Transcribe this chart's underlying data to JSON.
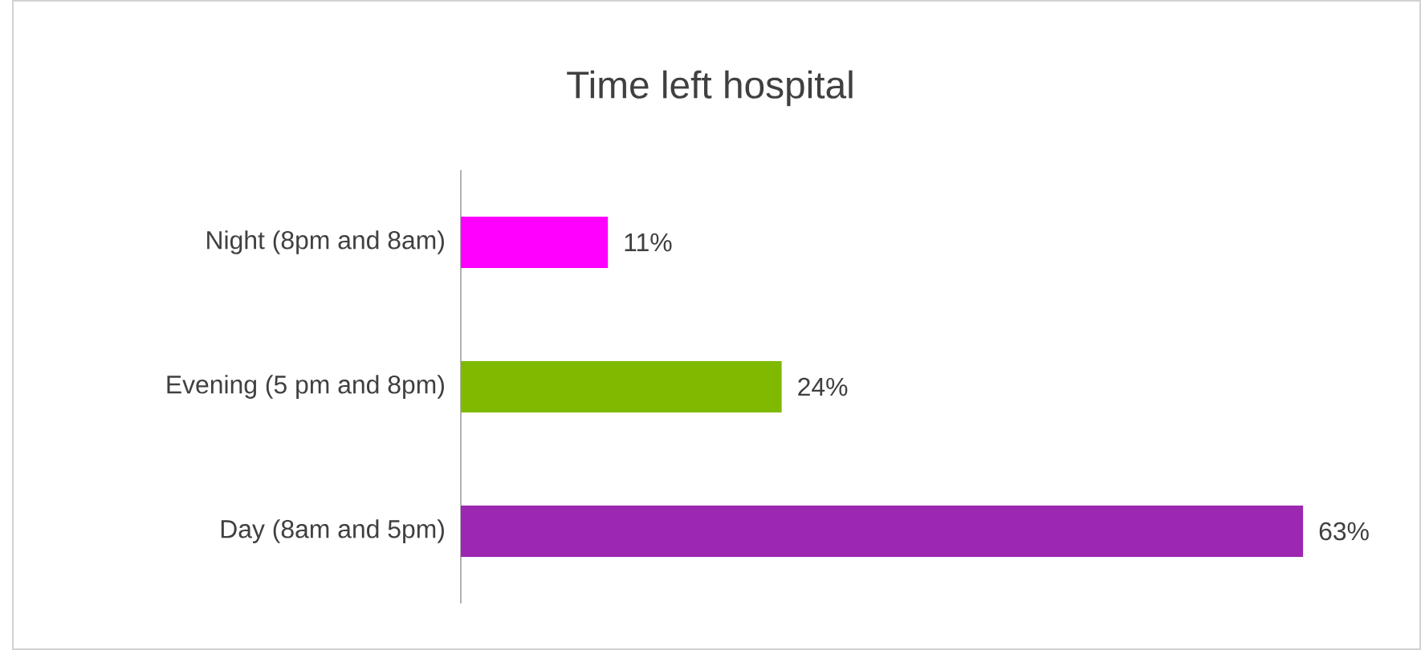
{
  "chart_data": {
    "type": "bar",
    "orientation": "horizontal",
    "title": "Time left hospital",
    "categories": [
      "Night (8pm and 8am)",
      "Evening (5 pm and 8pm)",
      "Day (8am and 5pm)"
    ],
    "values": [
      11,
      24,
      63
    ],
    "colors": [
      "#ff00ff",
      "#7fba00",
      "#9c27b0"
    ],
    "value_labels": [
      "11%",
      "24%",
      "63%"
    ]
  }
}
